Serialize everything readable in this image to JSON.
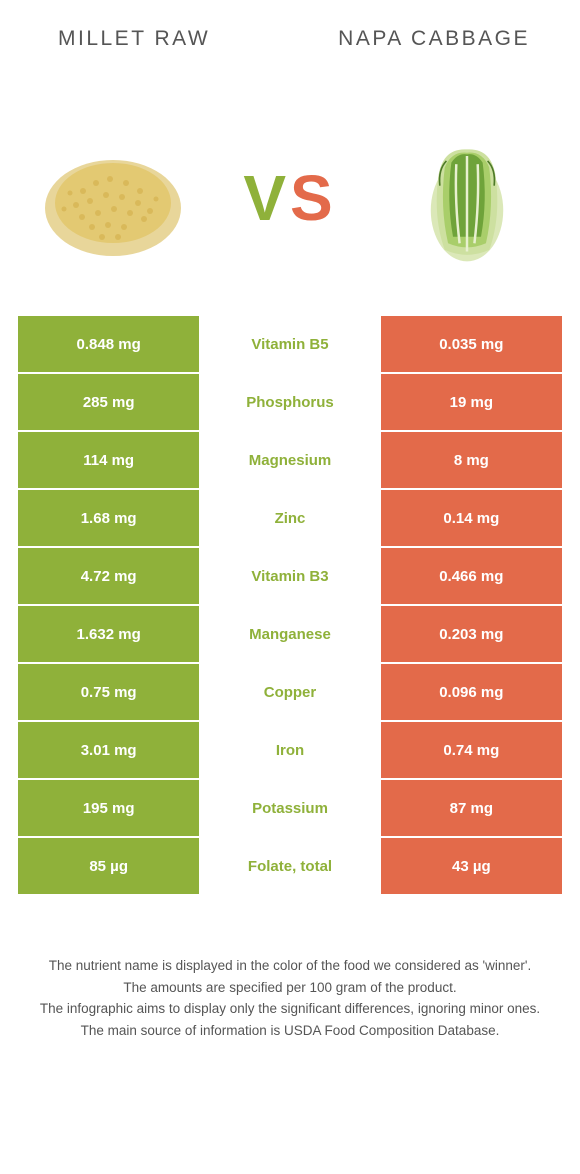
{
  "colors": {
    "green": "#8fb13a",
    "orange": "#e36a4a",
    "text": "#555555",
    "white": "#ffffff"
  },
  "food_left": {
    "name": "Millet raw"
  },
  "food_right": {
    "name": "Napa cabbage"
  },
  "vs": {
    "v": "V",
    "s": "S"
  },
  "rows": [
    {
      "nutrient": "Vitamin B5",
      "left": "0.848 mg",
      "right": "0.035 mg",
      "winner": "left"
    },
    {
      "nutrient": "Phosphorus",
      "left": "285 mg",
      "right": "19 mg",
      "winner": "left"
    },
    {
      "nutrient": "Magnesium",
      "left": "114 mg",
      "right": "8 mg",
      "winner": "left"
    },
    {
      "nutrient": "Zinc",
      "left": "1.68 mg",
      "right": "0.14 mg",
      "winner": "left"
    },
    {
      "nutrient": "Vitamin B3",
      "left": "4.72 mg",
      "right": "0.466 mg",
      "winner": "left"
    },
    {
      "nutrient": "Manganese",
      "left": "1.632 mg",
      "right": "0.203 mg",
      "winner": "left"
    },
    {
      "nutrient": "Copper",
      "left": "0.75 mg",
      "right": "0.096 mg",
      "winner": "left"
    },
    {
      "nutrient": "Iron",
      "left": "3.01 mg",
      "right": "0.74 mg",
      "winner": "left"
    },
    {
      "nutrient": "Potassium",
      "left": "195 mg",
      "right": "87 mg",
      "winner": "left"
    },
    {
      "nutrient": "Folate, total",
      "left": "85 µg",
      "right": "43 µg",
      "winner": "left"
    }
  ],
  "row_colors": {
    "left_bg": "#8fb13a",
    "right_bg": "#e36a4a",
    "nutrient_green": "#8fb13a",
    "nutrient_orange": "#e36a4a"
  },
  "footnotes": [
    "The nutrient name is displayed in the color of the food we considered as 'winner'.",
    "The amounts are specified per 100 gram of the product.",
    "The infographic aims to display only the significant differences, ignoring minor ones.",
    "The main source of information is USDA Food Composition Database."
  ]
}
